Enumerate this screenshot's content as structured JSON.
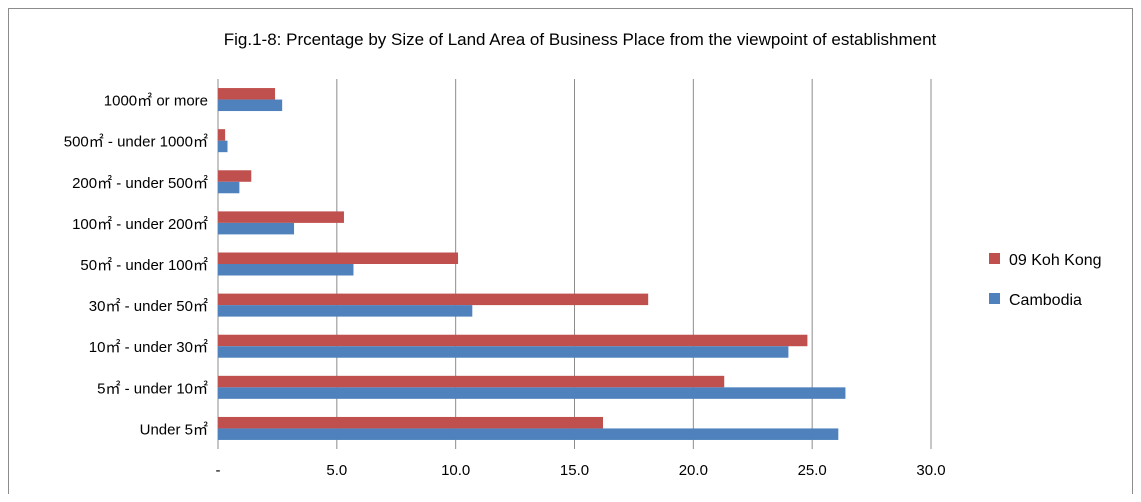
{
  "chart_data": {
    "type": "bar",
    "orientation": "horizontal",
    "title": "Fig.1-8: Prcentage by Size of Land Area of Business Place from the viewpoint of establishment",
    "xlabel": "",
    "ylabel": "",
    "xlim": [
      0,
      30
    ],
    "x_ticks": [
      "-",
      "5.0",
      "10.0",
      "15.0",
      "20.0",
      "25.0",
      "30.0"
    ],
    "grid": true,
    "legend_position": "right",
    "categories": [
      "1000㎡ or more",
      "500㎡ - under 1000㎡",
      "200㎡ - under 500㎡",
      "100㎡ - under 200㎡",
      "50㎡ - under 100㎡",
      "30㎡ - under 50㎡",
      "10㎡ - under 30㎡",
      "5㎡ - under 10㎡",
      "Under 5㎡"
    ],
    "series": [
      {
        "name": "09 Koh Kong",
        "color": "#c0504d",
        "values": [
          2.4,
          0.3,
          1.4,
          5.3,
          10.1,
          18.1,
          24.8,
          21.3,
          16.2
        ]
      },
      {
        "name": "Cambodia",
        "color": "#4f81bd",
        "values": [
          2.7,
          0.4,
          0.9,
          3.2,
          5.7,
          10.7,
          24.0,
          26.4,
          26.1
        ]
      }
    ]
  }
}
